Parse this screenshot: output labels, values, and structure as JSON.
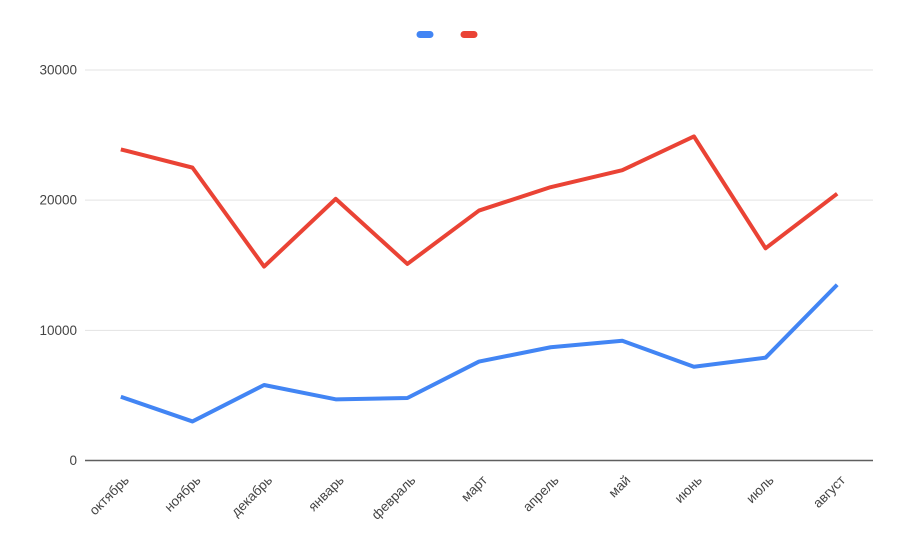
{
  "chart_data": {
    "type": "line",
    "title": "",
    "xlabel": "",
    "ylabel": "",
    "categories": [
      "октябрь",
      "ноябрь",
      "декабрь",
      "январь",
      "февраль",
      "март",
      "апрель",
      "май",
      "июнь",
      "июль",
      "август"
    ],
    "series": [
      {
        "name": "series-1",
        "legend_label": "",
        "color": "#4285f4",
        "values": [
          4900,
          3000,
          5800,
          4700,
          4800,
          7600,
          8700,
          9200,
          7200,
          7900,
          13500
        ]
      },
      {
        "name": "series-2",
        "legend_label": "",
        "color": "#ea4335",
        "values": [
          23900,
          22500,
          14900,
          20100,
          15100,
          19200,
          21000,
          22300,
          24900,
          16300,
          20500
        ]
      }
    ],
    "ylim": [
      0,
      30000
    ],
    "yticks": [
      0,
      10000,
      20000,
      30000
    ],
    "ytick_labels": [
      "0",
      "10000",
      "20000",
      "30000"
    ],
    "grid": true,
    "legend_position": "top",
    "x_label_rotation": -45
  },
  "colors": {
    "background": "#ffffff",
    "gridline": "#e3e3e3",
    "axis_baseline": "#5f5f5f",
    "tick_text": "#444444"
  }
}
